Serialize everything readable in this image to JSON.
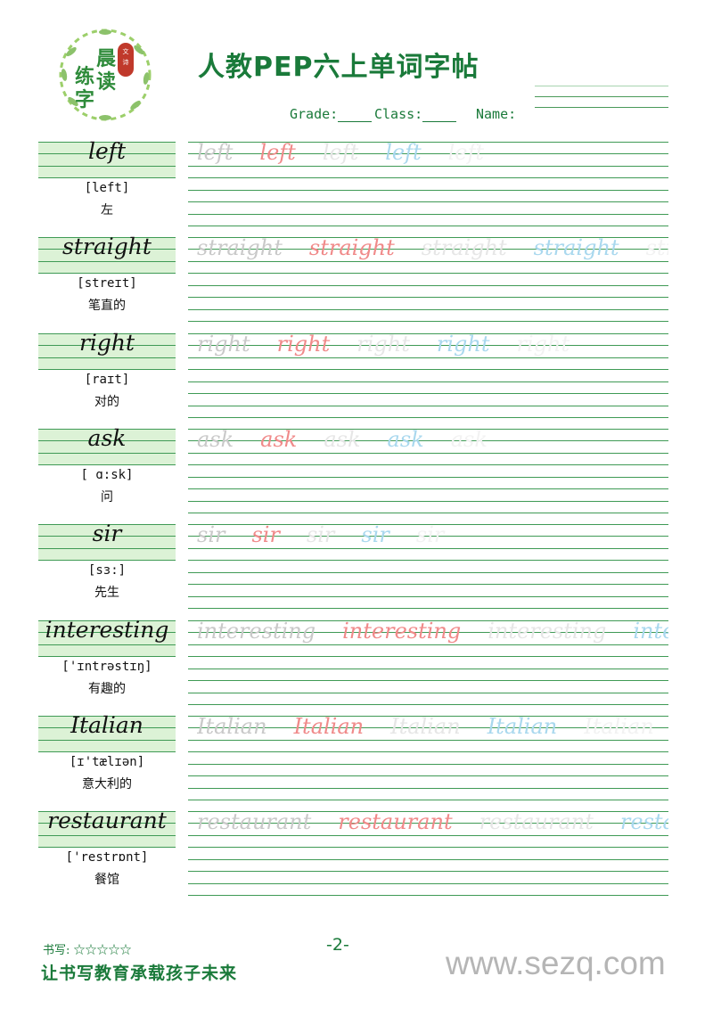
{
  "header": {
    "logo_text": [
      "晨",
      "读",
      "练",
      "字"
    ],
    "logo_badge": "文 诗",
    "title": "人教PEP六上单词字帖",
    "grade_label": "Grade:",
    "class_label": "Class:",
    "name_label": "Name:"
  },
  "colors": {
    "accent": "#1a7a3a",
    "word_box": "#dcf2d6",
    "line": "#3f9a55",
    "trace": [
      "#c9c9c9",
      "#f08a8a",
      "#e6e6e6",
      "#a9d8ee",
      "#f2f2f2"
    ]
  },
  "words": [
    {
      "word": "left",
      "phonetic": "[left]",
      "meaning": "左"
    },
    {
      "word": "straight",
      "phonetic": "[streɪt]",
      "meaning": "笔直的"
    },
    {
      "word": "right",
      "phonetic": "[raɪt]",
      "meaning": "对的"
    },
    {
      "word": "ask",
      "phonetic": "[ ɑ:sk]",
      "meaning": "问"
    },
    {
      "word": "sir",
      "phonetic": "[sɜ:]",
      "meaning": "先生"
    },
    {
      "word": "interesting",
      "phonetic": "['ɪntrəstɪŋ]",
      "meaning": "有趣的"
    },
    {
      "word": "Italian",
      "phonetic": "[ɪ'tælɪən]",
      "meaning": "意大利的"
    },
    {
      "word": "restaurant",
      "phonetic": "['restrɒnt]",
      "meaning": "餐馆"
    }
  ],
  "footer": {
    "rating": "书写: ☆☆☆☆☆",
    "page": "-2-",
    "slogan": "让书写教育承载孩子未来",
    "watermark": "www.sezq.com"
  }
}
